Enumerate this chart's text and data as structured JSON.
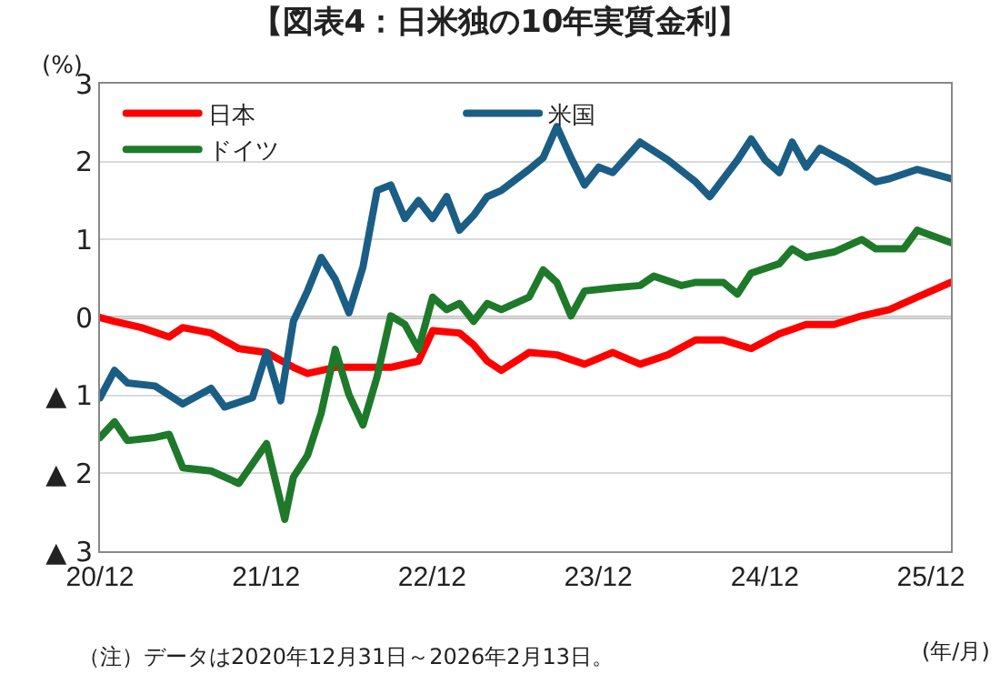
{
  "chart_data": {
    "type": "line",
    "title": "【図表4：日米独の10年実質金利】",
    "ylabel": "(%)",
    "xlabel": "(年/月)",
    "annotations": [
      "（注）データは2020年12月31日～2026年2月13日。"
    ],
    "xlim": [
      "2020-12-31",
      "2026-02-13"
    ],
    "xticks": [
      {
        "value": "2020-12-31",
        "label": "20/12"
      },
      {
        "value": "2021-12-31",
        "label": "21/12"
      },
      {
        "value": "2022-12-31",
        "label": "22/12"
      },
      {
        "value": "2023-12-31",
        "label": "23/12"
      },
      {
        "value": "2024-12-31",
        "label": "24/12"
      },
      {
        "value": "2025-12-31",
        "label": "25/12"
      }
    ],
    "ylim": [
      -3,
      3
    ],
    "yticks": [
      3,
      2,
      1,
      0,
      {
        "value": -1,
        "label": "▲ 1"
      },
      {
        "value": -2,
        "label": "▲ 2"
      },
      {
        "value": -3,
        "label": "▲ 3"
      }
    ],
    "grid": "y",
    "legend": "top left",
    "marker": "none",
    "line_style": "solid",
    "ref_lines": [
      {
        "axis": "y",
        "value": 0,
        "color": "#808080"
      }
    ],
    "series": [
      {
        "name": "日本",
        "color": "#ff0000",
        "x": [
          "2020-12-31",
          "2021-02",
          "2021-04",
          "2021-06",
          "2021-07",
          "2021-09",
          "2021-11",
          "2022-01",
          "2022-03",
          "2022-04",
          "2022-06",
          "2022-08",
          "2022-10",
          "2022-12",
          "2023-01",
          "2023-03",
          "2023-04",
          "2023-05",
          "2023-06",
          "2023-08",
          "2023-10",
          "2023-12",
          "2024-02",
          "2024-04",
          "2024-06",
          "2024-08",
          "2024-10",
          "2024-12",
          "2025-02",
          "2025-04",
          "2025-06",
          "2025-08",
          "2025-10",
          "2025-12",
          "2026-02-13"
        ],
        "values": [
          0.0,
          -0.05,
          -0.13,
          -0.25,
          -0.13,
          -0.2,
          -0.4,
          -0.45,
          -0.64,
          -0.72,
          -0.64,
          -0.64,
          -0.64,
          -0.56,
          -0.17,
          -0.2,
          -0.35,
          -0.56,
          -0.68,
          -0.45,
          -0.48,
          -0.6,
          -0.45,
          -0.6,
          -0.48,
          -0.29,
          -0.29,
          -0.4,
          -0.21,
          -0.09,
          -0.09,
          0.02,
          0.1,
          0.26,
          0.45
        ]
      },
      {
        "name": "米国",
        "color": "#1b5e85",
        "x": [
          "2020-12-31",
          "2021-02",
          "2021-03",
          "2021-05",
          "2021-07",
          "2021-09",
          "2021-10",
          "2021-12",
          "2022-01",
          "2022-02",
          "2022-03",
          "2022-04",
          "2022-05",
          "2022-06",
          "2022-07",
          "2022-08",
          "2022-09",
          "2022-10",
          "2022-11",
          "2022-12",
          "2023-01",
          "2023-02",
          "2023-03",
          "2023-04",
          "2023-05",
          "2023-06",
          "2023-08",
          "2023-09",
          "2023-10",
          "2023-11",
          "2023-12",
          "2024-01",
          "2024-02",
          "2024-04",
          "2024-06",
          "2024-08",
          "2024-09",
          "2024-11",
          "2024-12",
          "2025-01",
          "2025-02",
          "2025-03",
          "2025-04",
          "2025-05",
          "2025-07",
          "2025-09",
          "2025-10",
          "2025-12",
          "2026-02-13"
        ],
        "values": [
          -1.03,
          -0.68,
          -0.84,
          -0.88,
          -1.11,
          -0.91,
          -1.15,
          -1.03,
          -0.45,
          -1.07,
          -0.05,
          0.34,
          0.77,
          0.49,
          0.06,
          0.65,
          1.63,
          1.7,
          1.27,
          1.5,
          1.27,
          1.55,
          1.12,
          1.31,
          1.55,
          1.63,
          1.9,
          2.05,
          2.45,
          2.05,
          1.7,
          1.93,
          1.86,
          2.25,
          2.02,
          1.74,
          1.55,
          2.02,
          2.29,
          2.02,
          1.86,
          2.25,
          1.93,
          2.17,
          1.98,
          1.74,
          1.78,
          1.9,
          1.78
        ]
      },
      {
        "name": "ドイツ",
        "color": "#1e7a2a",
        "x": [
          "2020-12-31",
          "2021-02",
          "2021-03",
          "2021-05",
          "2021-06",
          "2021-07",
          "2021-09",
          "2021-11",
          "2022-01",
          "2022-02-10",
          "2022-03-01",
          "2022-04",
          "2022-05",
          "2022-06",
          "2022-07",
          "2022-08",
          "2022-09",
          "2022-10",
          "2022-11",
          "2022-12",
          "2023-01",
          "2023-02",
          "2023-03",
          "2023-04",
          "2023-05",
          "2023-06",
          "2023-08",
          "2023-09",
          "2023-10",
          "2023-11",
          "2023-12",
          "2024-02",
          "2024-04",
          "2024-05",
          "2024-07",
          "2024-08",
          "2024-10",
          "2024-11",
          "2024-12",
          "2025-02",
          "2025-03",
          "2025-04",
          "2025-06",
          "2025-08",
          "2025-09",
          "2025-11",
          "2025-12",
          "2026-02-13"
        ],
        "values": [
          -1.54,
          -1.34,
          -1.58,
          -1.54,
          -1.5,
          -1.93,
          -1.97,
          -2.13,
          -1.62,
          -2.59,
          -2.05,
          -1.77,
          -1.23,
          -0.41,
          -0.99,
          -1.38,
          -0.76,
          0.02,
          -0.09,
          -0.41,
          0.26,
          0.1,
          0.18,
          -0.05,
          0.18,
          0.1,
          0.26,
          0.61,
          0.45,
          0.02,
          0.34,
          0.38,
          0.41,
          0.53,
          0.41,
          0.45,
          0.45,
          0.3,
          0.57,
          0.69,
          0.88,
          0.77,
          0.84,
          1.0,
          0.88,
          0.88,
          1.12,
          0.96
        ]
      }
    ]
  }
}
